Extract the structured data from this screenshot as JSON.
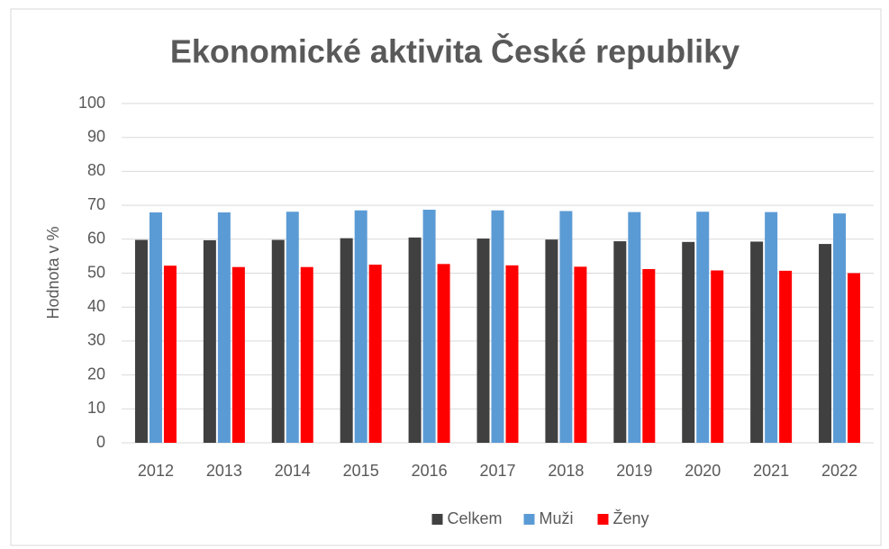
{
  "chart_data": {
    "type": "bar",
    "title": "Ekonomické aktivita České republiky",
    "y_label": "Hodnota v %",
    "categories": [
      "2012",
      "2013",
      "2014",
      "2015",
      "2016",
      "2017",
      "2018",
      "2019",
      "2020",
      "2021",
      "2022"
    ],
    "series": [
      {
        "name": "Celkem",
        "color": "#404040",
        "values": [
          59.8,
          59.7,
          59.8,
          60.3,
          60.5,
          60.2,
          59.9,
          59.4,
          59.2,
          59.3,
          58.6
        ]
      },
      {
        "name": "Muži",
        "color": "#5b9bd5",
        "values": [
          67.9,
          67.9,
          68.1,
          68.5,
          68.7,
          68.5,
          68.3,
          68.0,
          68.1,
          68.0,
          67.6
        ]
      },
      {
        "name": "Ženy",
        "color": "#ff0000",
        "values": [
          52.2,
          51.8,
          51.8,
          52.5,
          52.7,
          52.3,
          51.9,
          51.2,
          50.8,
          50.7,
          50.0
        ]
      }
    ],
    "ylim": [
      0,
      100
    ],
    "yticks": [
      0,
      10,
      20,
      30,
      40,
      50,
      60,
      70,
      80,
      90,
      100
    ],
    "grid": true,
    "legend": "bottom"
  }
}
